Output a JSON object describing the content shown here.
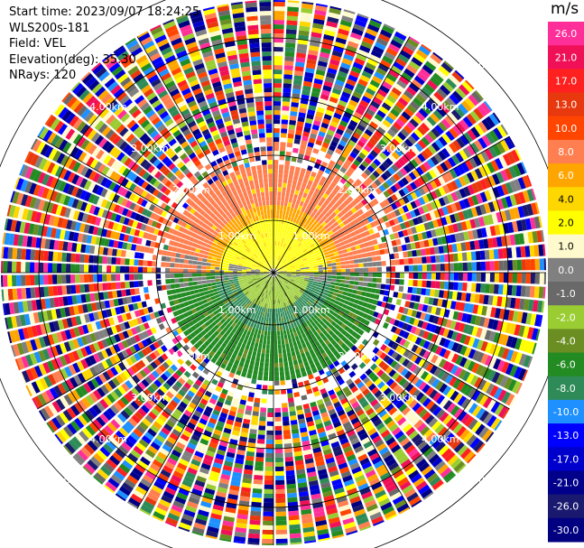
{
  "header": {
    "start_time": "Start time: 2023/09/07 18:24:25",
    "instrument": "WLS200s-181",
    "field": "Field: VEL",
    "elevation": "Elevation(deg): 35.30",
    "nrays": "NRays: 120"
  },
  "colorbar": {
    "unit": "m/s",
    "ticks": [
      "26.0",
      "21.0",
      "17.0",
      "13.0",
      "10.0",
      "8.0",
      "6.0",
      "4.0",
      "2.0",
      "1.0",
      "0.0",
      "-1.0",
      "-2.0",
      "-4.0",
      "-6.0",
      "-8.0",
      "-10.0",
      "-13.0",
      "-17.0",
      "-21.0",
      "-26.0",
      "-30.0"
    ],
    "colors": [
      "#ff2f9a",
      "#f01058",
      "#ff2020",
      "#e8380e",
      "#ff4500",
      "#ff7f50",
      "#ffa500",
      "#ffd700",
      "#ffff00",
      "#fffacd",
      "#808080",
      "#696969",
      "#9acd32",
      "#6b8e23",
      "#228b22",
      "#2e8b57",
      "#1e90ff",
      "#0000ff",
      "#0000cd",
      "#00008b",
      "#191970",
      "#000080"
    ]
  },
  "chart_data": {
    "type": "heatmap",
    "projection": "polar PPI",
    "field": "VEL",
    "units": "m/s",
    "nrays": 120,
    "range_ring_labels": [
      "1.00km",
      "2.00km",
      "3.00km",
      "4.00km",
      "5.00km"
    ],
    "range_rings_km": [
      1,
      2,
      3,
      4,
      5
    ],
    "color_levels": [
      26.0,
      21.0,
      17.0,
      13.0,
      10.0,
      8.0,
      6.0,
      4.0,
      2.0,
      1.0,
      0.0,
      -1.0,
      -2.0,
      -4.0,
      -6.0,
      -8.0,
      -10.0,
      -13.0,
      -17.0,
      -21.0,
      -26.0,
      -30.0
    ],
    "max_range_km": 2.5
  }
}
